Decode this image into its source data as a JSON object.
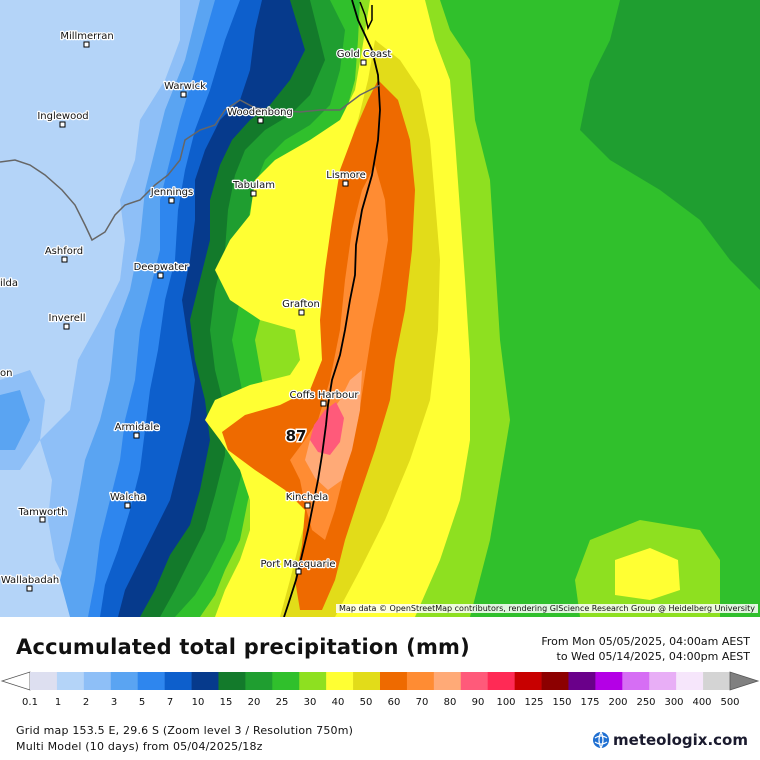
{
  "map": {
    "towns": [
      {
        "name": "Millmerran"
      },
      {
        "name": "Gold Coast"
      },
      {
        "name": "Warwick"
      },
      {
        "name": "Inglewood"
      },
      {
        "name": "Woodenbong"
      },
      {
        "name": "Lismore"
      },
      {
        "name": "Jennings"
      },
      {
        "name": "Tabulam"
      },
      {
        "name": "Ashford"
      },
      {
        "name": "Deepwater"
      },
      {
        "name": "ilda"
      },
      {
        "name": "Grafton"
      },
      {
        "name": "Inverell"
      },
      {
        "name": "on"
      },
      {
        "name": "Coffs Harbour"
      },
      {
        "name": "Armidale"
      },
      {
        "name": "Kinchela"
      },
      {
        "name": "Walcha"
      },
      {
        "name": "Tamworth"
      },
      {
        "name": "Port Macquarie"
      },
      {
        "name": "Wallabadah"
      }
    ],
    "max_value": "87",
    "attribution": "Map data © OpenStreetMap contributors, rendering GIScience Research Group @ Heidelberg University"
  },
  "legend": {
    "title": "Accumulated total precipitation (mm)",
    "period_from": "From Mon 05/05/2025, 04:00am AEST",
    "period_to": "to Wed 05/14/2025, 04:00pm AEST",
    "ticks": [
      "0.1",
      "1",
      "2",
      "3",
      "5",
      "7",
      "10",
      "15",
      "20",
      "25",
      "30",
      "40",
      "50",
      "60",
      "70",
      "80",
      "90",
      "100",
      "125",
      "150",
      "175",
      "200",
      "250",
      "300",
      "400",
      "500"
    ],
    "colors": [
      "#dddff0",
      "#b4d4f8",
      "#8ebff7",
      "#5aa4f2",
      "#2e86ee",
      "#0d5fcc",
      "#063a8c",
      "#137a2b",
      "#1f9e30",
      "#30c02c",
      "#8ee020",
      "#ffff33",
      "#e2dc19",
      "#ee6a00",
      "#ff8c33",
      "#ffaa77",
      "#ff5a7a",
      "#ff2a55",
      "#c80000",
      "#8c0000",
      "#6a008a",
      "#b400e6",
      "#d66ef4",
      "#e8aef6",
      "#f6e6fb",
      "#d4d4d4"
    ]
  },
  "info": {
    "grid": "Grid map 153.5 E, 29.6 S (Zoom level 3 / Resolution 750m)",
    "model": "Multi Model (10 days) from  05/04/2025/18z"
  },
  "brand": {
    "name": "meteologix.com",
    "icon": "globe-icon"
  }
}
